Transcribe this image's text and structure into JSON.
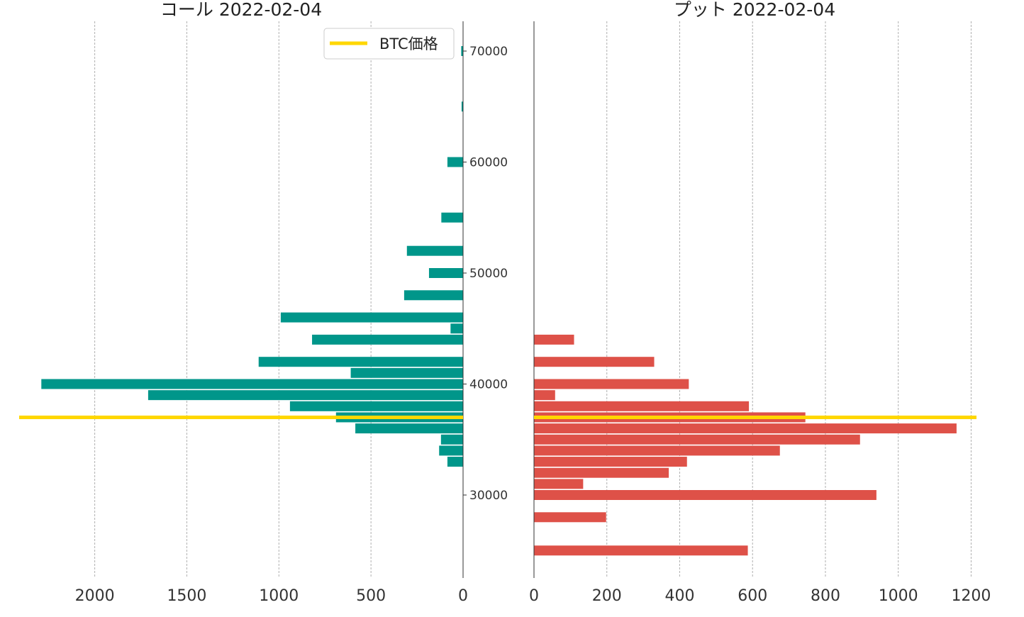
{
  "chart_data": [
    {
      "type": "bar",
      "orientation": "horizontal",
      "x_direction": "reversed",
      "title": "コール 2022-02-04",
      "xlim": [
        0,
        2400
      ],
      "xticks": [
        2000,
        1500,
        1000,
        500,
        0
      ],
      "ylim": [
        24000,
        73000
      ],
      "ylabel_ticks": [
        70000,
        60000,
        50000,
        40000,
        30000
      ],
      "grid": "vertical dashed",
      "bar_color": "#00968a",
      "strikes": [
        70000,
        65000,
        60000,
        55000,
        52000,
        50000,
        48000,
        46000,
        45000,
        44000,
        42000,
        41000,
        40000,
        39000,
        38000,
        37000,
        36000,
        35000,
        34000,
        33000
      ],
      "values": [
        10,
        8,
        85,
        118,
        305,
        185,
        320,
        990,
        68,
        820,
        1110,
        610,
        2290,
        1710,
        940,
        690,
        585,
        120,
        130,
        85
      ]
    },
    {
      "type": "bar",
      "orientation": "horizontal",
      "title": "プット 2022-02-04",
      "xlim": [
        0,
        1250
      ],
      "xticks": [
        0,
        200,
        400,
        600,
        800,
        1000,
        1200
      ],
      "ylim": [
        24000,
        73000
      ],
      "grid": "vertical dashed",
      "bar_color": "#de5148",
      "strikes": [
        44000,
        42000,
        40000,
        39000,
        38000,
        37000,
        36000,
        35000,
        34000,
        33000,
        32000,
        31000,
        30000,
        28000,
        25000
      ],
      "values": [
        110,
        330,
        425,
        58,
        590,
        745,
        1160,
        895,
        675,
        420,
        370,
        135,
        940,
        198,
        587
      ]
    }
  ],
  "btc_price_line": {
    "value": 37000,
    "color": "#ffd700"
  },
  "legend": {
    "label": "BTC価格",
    "position": "top-right of left panel"
  }
}
